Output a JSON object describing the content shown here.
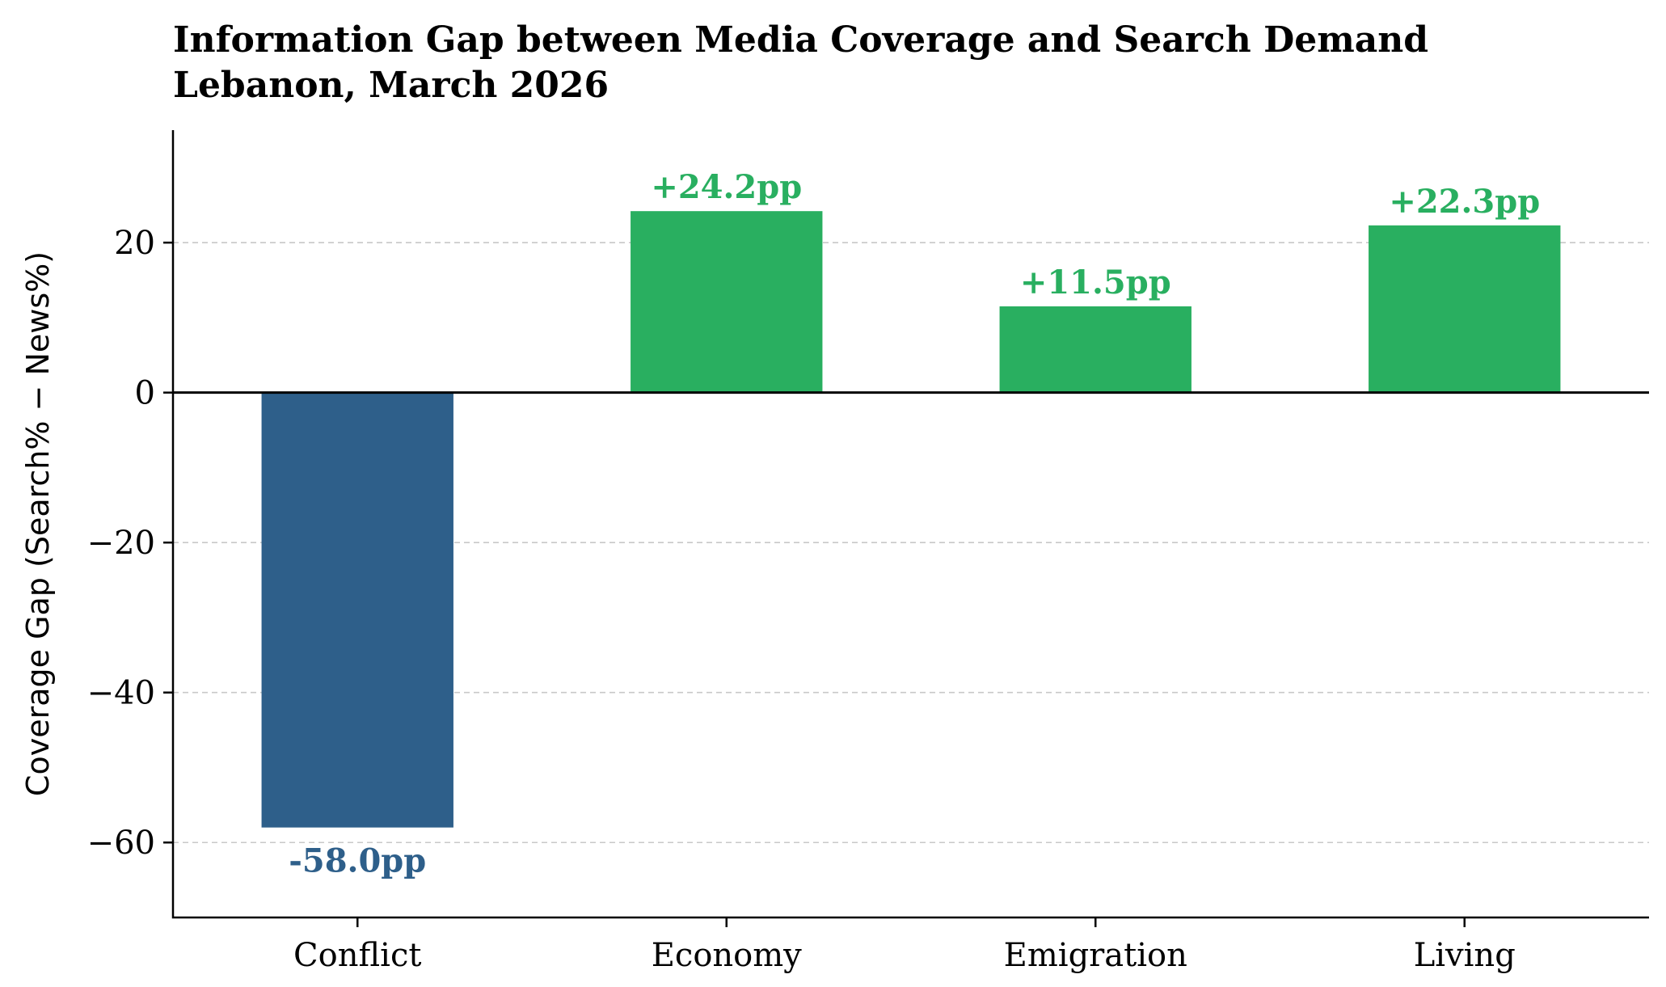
{
  "chart_data": {
    "type": "bar",
    "title": "Information Gap between Media Coverage and Search Demand",
    "subtitle": "Lebanon, March 2026",
    "xlabel": "",
    "ylabel": "Coverage Gap (Search% − News%)",
    "categories": [
      "Conflict",
      "Economy",
      "Emigration",
      "Living"
    ],
    "values": [
      -58.0,
      24.2,
      11.5,
      22.3
    ],
    "data_labels": [
      "-58.0pp",
      "+24.2pp",
      "+11.5pp",
      "+22.3pp"
    ],
    "ylim": [
      -70,
      35
    ],
    "yticks": [
      20,
      0,
      -20,
      -40,
      -60
    ],
    "ytick_labels": [
      "20",
      "0",
      "−20",
      "−40",
      "−60"
    ],
    "grid": true,
    "legend": "none",
    "colors": {
      "negative": "#2e5f8a",
      "positive": "#29af60"
    }
  }
}
